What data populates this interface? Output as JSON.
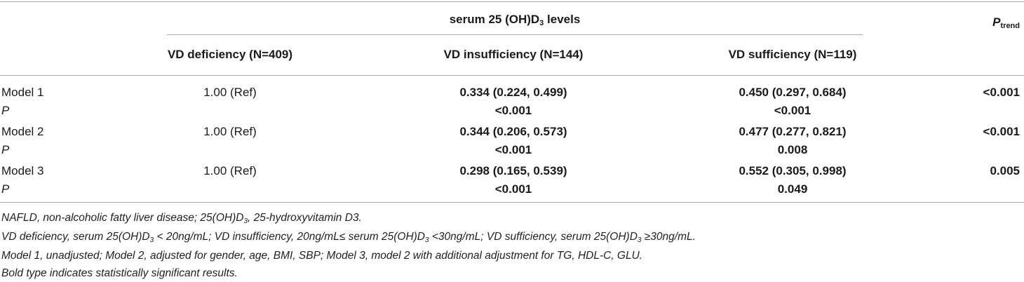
{
  "table": {
    "group_header": {
      "prefix": "serum 25 (OH)D",
      "sub": "3",
      "suffix": " levels"
    },
    "ptrend_header": {
      "main": "P",
      "sub": "trend"
    },
    "columns": [
      "VD deficiency (N=409)",
      "VD insufficiency (N=144)",
      "VD sufficiency (N=119)"
    ],
    "rows": [
      {
        "label": "Model 1",
        "def": "1.00 (Ref)",
        "insuf": "0.334 (0.224, 0.499)",
        "suff": "0.450 (0.297, 0.684)",
        "ptrend": "<0.001"
      },
      {
        "label": "P",
        "insuf": "<0.001",
        "suff": "<0.001"
      },
      {
        "label": "Model 2",
        "def": "1.00 (Ref)",
        "insuf": "0.344 (0.206, 0.573)",
        "suff": "0.477 (0.277, 0.821)",
        "ptrend": "<0.001"
      },
      {
        "label": "P",
        "insuf": "<0.001",
        "suff": "0.008"
      },
      {
        "label": "Model 3",
        "def": "1.00 (Ref)",
        "insuf": "0.298 (0.165, 0.539)",
        "suff": "0.552 (0.305, 0.998)",
        "ptrend": "0.005"
      },
      {
        "label": "P",
        "insuf": "<0.001",
        "suff": "0.049"
      }
    ]
  },
  "footnotes": {
    "n1": {
      "a": "NAFLD, non-alcoholic fatty liver disease; 25(OH)D",
      "s": "3",
      "b": ", 25-hydroxyvitamin D3."
    },
    "n2": {
      "a": "VD deficiency, serum 25(OH)D",
      "s1": "3",
      "b": " < 20ng/mL; VD insufficiency, 20ng/mL≤ serum 25(OH)D",
      "s2": "3",
      "c": " <30ng/mL; VD sufficiency, serum 25(OH)D",
      "s3": "3",
      "d": " ≥30ng/mL."
    },
    "n3": "Model 1, unadjusted; Model 2, adjusted for gender, age, BMI, SBP; Model 3, model 2 with additional adjustment for TG, HDL-C, GLU.",
    "n4": "Bold type indicates statistically significant results."
  }
}
